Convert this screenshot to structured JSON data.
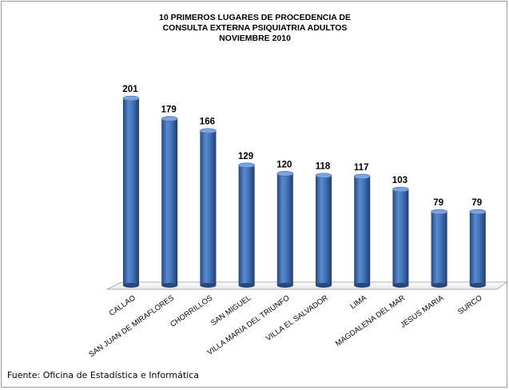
{
  "chart_data": {
    "type": "bar",
    "title": [
      "10 PRIMEROS LUGARES DE PROCEDENCIA DE",
      "CONSULTA EXTERNA PSIQUIATRIA ADULTOS",
      "NOVIEMBRE 2010"
    ],
    "categories": [
      "CALLAO",
      "SAN JUAN DE MIRAFLORES",
      "CHORRILLOS",
      "SAN MIGUEL",
      "VILLA MARIA DEL TRIUNFO",
      "VILLA EL SALVADOR",
      "LIMA",
      "MAGDALENA DEL MAR",
      "JESUS MARIA",
      "SURCO"
    ],
    "values": [
      201,
      179,
      166,
      129,
      120,
      118,
      117,
      103,
      79,
      79
    ],
    "ylim": [
      0,
      201
    ],
    "grid": false,
    "legend": "none",
    "bar_color": "#3f6fb5",
    "xlabel": "",
    "ylabel": ""
  },
  "source": "Fuente: Oficina de Estadística e Informática"
}
